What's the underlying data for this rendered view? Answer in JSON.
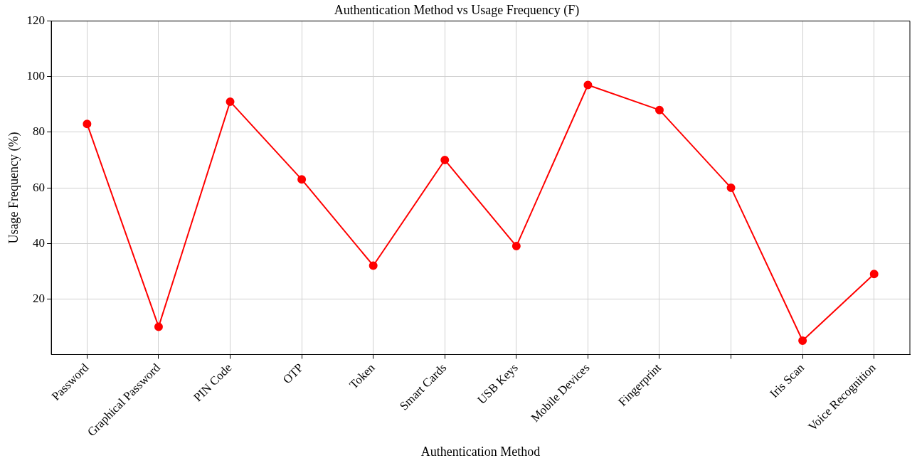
{
  "chart_data": {
    "type": "line",
    "title": "Authentication Method vs Usage Frequency (F)",
    "xlabel": "Authentication Method",
    "ylabel": "Usage Frequency (%)",
    "categories": [
      "Password",
      "Graphical Password",
      "PIN Code",
      "OTP",
      "Token",
      "Smart Cards",
      "USB Keys",
      "Mobile Devices",
      "Fingerprint",
      null,
      "Iris Scan",
      "Voice Recognition"
    ],
    "series": [
      {
        "color": "#ff0000",
        "values": [
          83,
          10,
          91,
          63,
          32,
          70,
          39,
          97,
          88,
          60,
          5,
          29
        ]
      }
    ],
    "ylim": [
      0,
      120
    ],
    "yticks": [
      20,
      40,
      60,
      80,
      100,
      120
    ],
    "grid": true,
    "marker": "circle",
    "line_style": "solid",
    "legend": false
  }
}
